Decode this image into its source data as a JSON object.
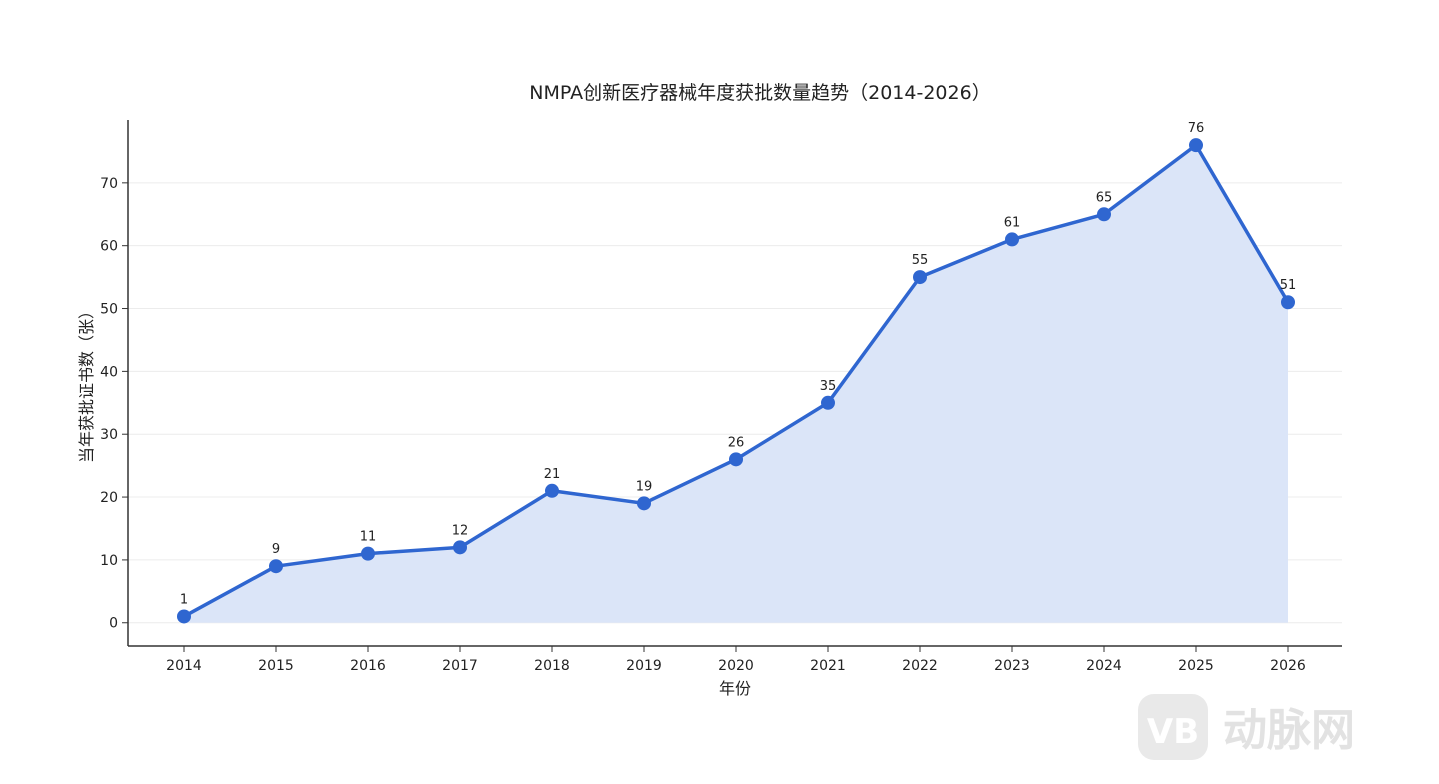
{
  "chart_data": {
    "type": "area",
    "title": "NMPA创新医疗器械年度获批数量趋势（2014-2026）",
    "xlabel": "年份",
    "ylabel": "当年获批证书数（张）",
    "x": [
      "2014",
      "2015",
      "2016",
      "2017",
      "2018",
      "2019",
      "2020",
      "2021",
      "2022",
      "2023",
      "2024",
      "2025",
      "2026"
    ],
    "values": [
      1,
      9,
      11,
      12,
      21,
      19,
      26,
      35,
      55,
      61,
      65,
      76,
      51
    ],
    "ylim": [
      -3.7,
      80
    ],
    "yticks": [
      0,
      10,
      20,
      30,
      40,
      50,
      60,
      70
    ],
    "grid": "horizontal",
    "colors": {
      "line": "#2f66d0",
      "fill": "#dbe5f8",
      "grid": "#ececec",
      "axis": "#333333"
    },
    "data_labels": true
  },
  "watermark": {
    "logo_text": "VB",
    "text": "动脉网"
  }
}
